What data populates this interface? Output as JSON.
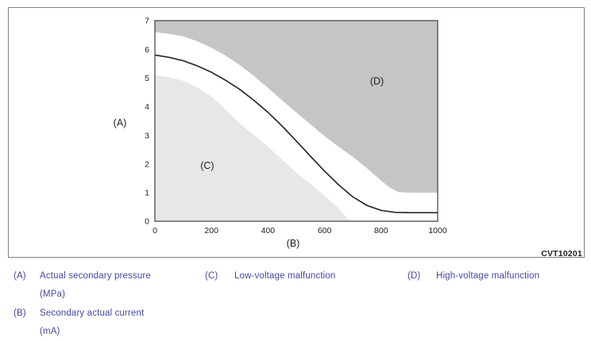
{
  "figure": {
    "code": "CVT10201",
    "border_color": "#7f7f7f",
    "background": "#ffffff"
  },
  "chart_data": {
    "type": "area",
    "title": "",
    "xlabel": "(B)",
    "ylabel": "(A)",
    "xlim": [
      0,
      1000
    ],
    "ylim": [
      0,
      7
    ],
    "x_ticks": [
      0,
      200,
      400,
      600,
      800,
      1000
    ],
    "y_ticks": [
      0,
      1,
      2,
      3,
      4,
      5,
      6,
      7
    ],
    "grid": false,
    "axis_color": "#3c3c3c",
    "regions": [
      {
        "name": "low-voltage-malfunction-region",
        "label": "(C)",
        "label_x": 185,
        "label_y": 1.95,
        "color": "#e7e7ea",
        "closes_to": "bottom-left",
        "boundary": [
          [
            0,
            5.1
          ],
          [
            50,
            5.03
          ],
          [
            100,
            4.9
          ],
          [
            150,
            4.67
          ],
          [
            200,
            4.35
          ],
          [
            250,
            3.9
          ],
          [
            300,
            3.42
          ],
          [
            350,
            3.0
          ],
          [
            400,
            2.6
          ],
          [
            450,
            2.15
          ],
          [
            500,
            1.7
          ],
          [
            550,
            1.3
          ],
          [
            600,
            0.9
          ],
          [
            650,
            0.45
          ],
          [
            690,
            0
          ]
        ]
      },
      {
        "name": "high-voltage-malfunction-region",
        "label": "(D)",
        "label_x": 785,
        "label_y": 4.9,
        "color": "#c5c5c8",
        "closes_to": "top-right",
        "boundary": [
          [
            0,
            6.6
          ],
          [
            50,
            6.54
          ],
          [
            100,
            6.45
          ],
          [
            150,
            6.28
          ],
          [
            200,
            6.05
          ],
          [
            250,
            5.78
          ],
          [
            300,
            5.45
          ],
          [
            350,
            5.07
          ],
          [
            400,
            4.65
          ],
          [
            450,
            4.22
          ],
          [
            500,
            3.8
          ],
          [
            550,
            3.38
          ],
          [
            600,
            2.97
          ],
          [
            650,
            2.6
          ],
          [
            700,
            2.25
          ],
          [
            750,
            1.85
          ],
          [
            800,
            1.42
          ],
          [
            830,
            1.18
          ],
          [
            860,
            1.02
          ],
          [
            900,
            1.0
          ],
          [
            1000,
            1.0
          ]
        ]
      }
    ],
    "series": [
      {
        "name": "secondary-pressure-curve",
        "color": "#2a2a2a",
        "points": [
          [
            0,
            5.8
          ],
          [
            50,
            5.72
          ],
          [
            100,
            5.6
          ],
          [
            150,
            5.42
          ],
          [
            200,
            5.2
          ],
          [
            250,
            4.92
          ],
          [
            300,
            4.6
          ],
          [
            350,
            4.22
          ],
          [
            400,
            3.8
          ],
          [
            450,
            3.32
          ],
          [
            500,
            2.8
          ],
          [
            550,
            2.27
          ],
          [
            600,
            1.75
          ],
          [
            650,
            1.27
          ],
          [
            700,
            0.85
          ],
          [
            750,
            0.55
          ],
          [
            800,
            0.38
          ],
          [
            850,
            0.31
          ],
          [
            900,
            0.3
          ],
          [
            1000,
            0.3
          ]
        ]
      }
    ]
  },
  "legend": {
    "text_color": "#4747a1",
    "items": [
      {
        "marker": "(A)",
        "lines": [
          "Actual secondary pressure",
          "(MPa)"
        ]
      },
      {
        "marker": "(B)",
        "lines": [
          "Secondary actual current",
          "(mA)"
        ]
      },
      {
        "marker": "(C)",
        "lines": [
          "Low-voltage malfunction"
        ]
      },
      {
        "marker": "(D)",
        "lines": [
          "High-voltage malfunction"
        ]
      }
    ]
  }
}
